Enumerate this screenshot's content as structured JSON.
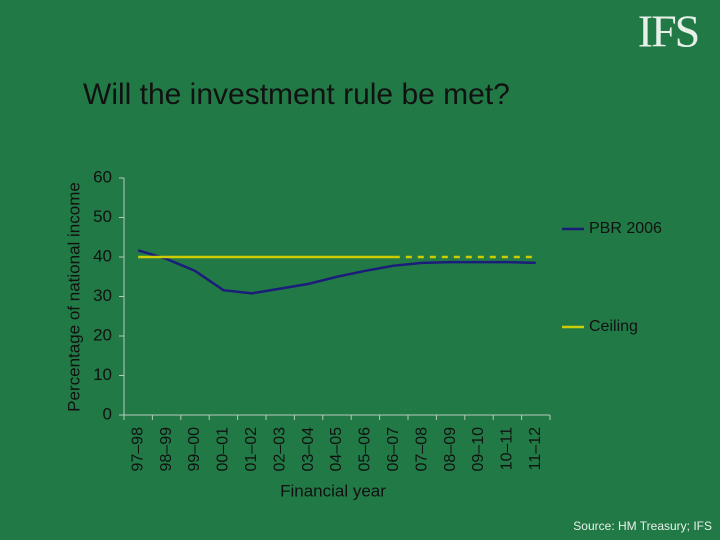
{
  "logo": "IFS",
  "source": "Source: HM Treasury; IFS",
  "chart_data": {
    "type": "line",
    "title": "Will the investment rule be met?",
    "x_label": "Financial year",
    "y_label": "Percentage of national income",
    "categories": [
      "97–98",
      "98–99",
      "99–00",
      "00–01",
      "01–02",
      "02–03",
      "03–04",
      "04–05",
      "05–06",
      "06–07",
      "07–08",
      "08–09",
      "09–10",
      "10–11",
      "11–12"
    ],
    "ylim": [
      0,
      60
    ],
    "yticks": [
      0,
      10,
      20,
      30,
      40,
      50,
      60
    ],
    "series": [
      {
        "name": "PBR 2006",
        "color": "#1c1c7a",
        "values": [
          41.7,
          39.5,
          36.5,
          31.6,
          30.8,
          32,
          33.2,
          35,
          36.5,
          37.8,
          38.5,
          38.7,
          38.7,
          38.7,
          38.5
        ]
      },
      {
        "name": "Ceiling",
        "color": "#cccc00",
        "values": [
          40,
          40,
          40,
          40,
          40,
          40,
          40,
          40,
          40,
          40,
          40,
          40,
          40,
          40,
          40
        ],
        "line_style": [
          "solid",
          "solid",
          "solid",
          "solid",
          "solid",
          "solid",
          "solid",
          "solid",
          "solid",
          "solid",
          "dashed",
          "dashed",
          "dashed",
          "dashed",
          "dashed"
        ]
      }
    ]
  }
}
